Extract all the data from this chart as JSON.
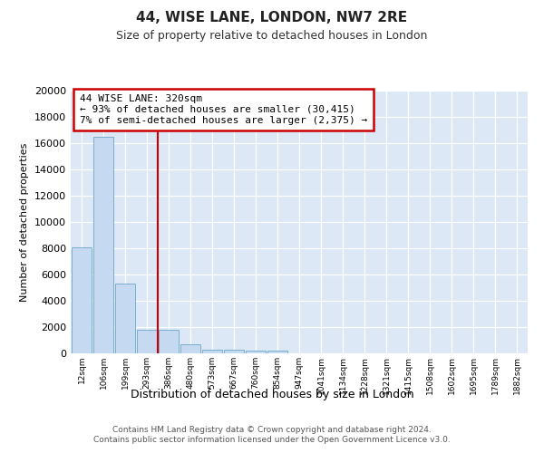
{
  "title1": "44, WISE LANE, LONDON, NW7 2RE",
  "title2": "Size of property relative to detached houses in London",
  "xlabel": "Distribution of detached houses by size in London",
  "ylabel": "Number of detached properties",
  "bar_labels": [
    "12sqm",
    "106sqm",
    "199sqm",
    "293sqm",
    "386sqm",
    "480sqm",
    "573sqm",
    "667sqm",
    "760sqm",
    "854sqm",
    "947sqm",
    "1041sqm",
    "1134sqm",
    "1228sqm",
    "1321sqm",
    "1415sqm",
    "1508sqm",
    "1602sqm",
    "1695sqm",
    "1789sqm",
    "1882sqm"
  ],
  "bar_values": [
    8100,
    16500,
    5300,
    1800,
    1800,
    700,
    300,
    250,
    200,
    175,
    0,
    0,
    0,
    0,
    0,
    0,
    0,
    0,
    0,
    0,
    0
  ],
  "bar_color": "#c5d9f0",
  "bar_edgecolor": "#7aadcf",
  "background_color": "#dce8f5",
  "grid_color": "#ffffff",
  "ylim_max": 20000,
  "red_line_x": 3.5,
  "annotation_line1": "44 WISE LANE: 320sqm",
  "annotation_line2": "← 93% of detached houses are smaller (30,415)",
  "annotation_line3": "7% of semi-detached houses are larger (2,375) →",
  "footer_line1": "Contains HM Land Registry data © Crown copyright and database right 2024.",
  "footer_line2": "Contains public sector information licensed under the Open Government Licence v3.0."
}
